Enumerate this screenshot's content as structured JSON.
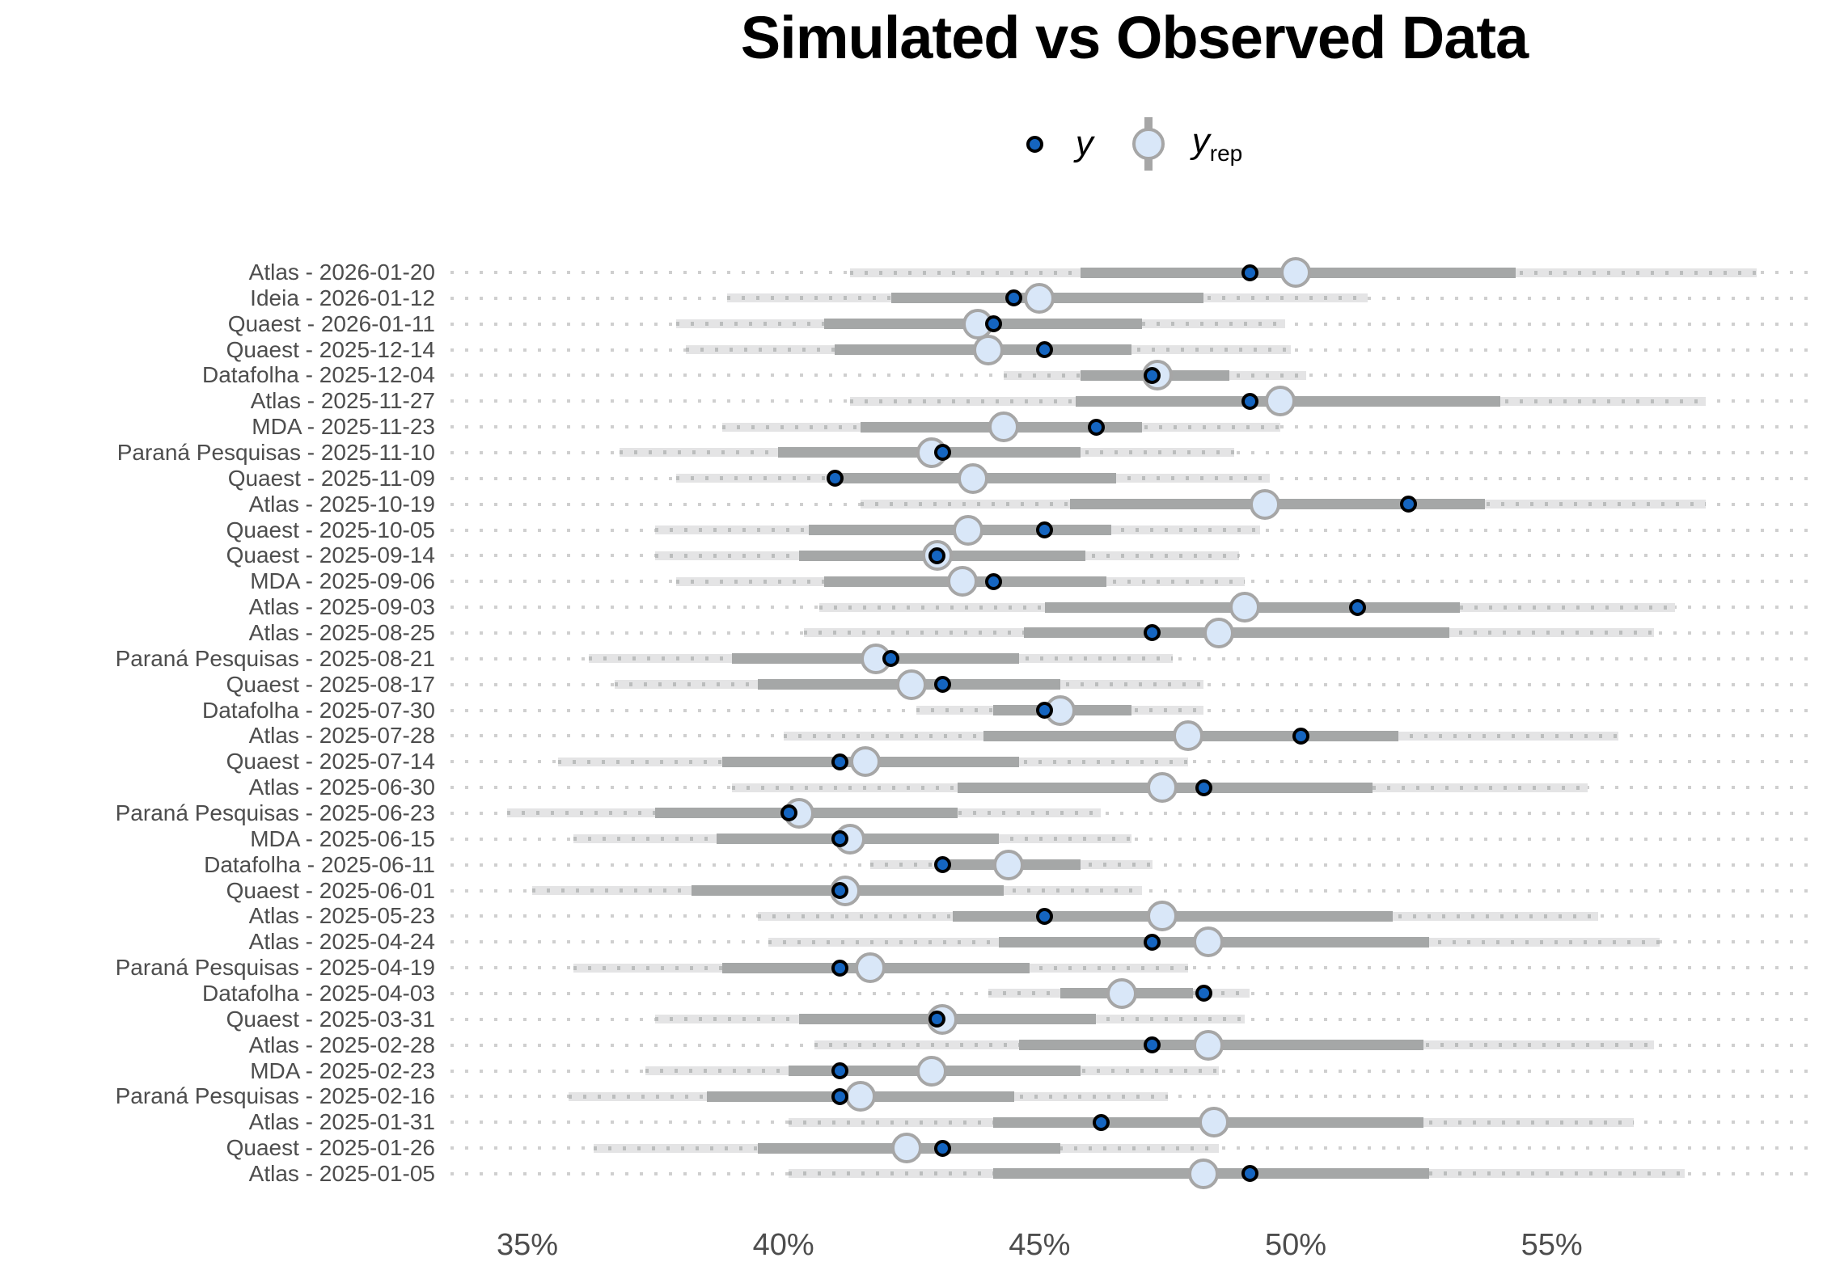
{
  "chart_data": {
    "type": "scatter",
    "variant": "posterior-predictive-check-intervals",
    "title": "Simulated vs Observed Data",
    "legend": {
      "position": "top-center",
      "y_label": "y",
      "yrep_label_main": "y",
      "yrep_label_sub": "rep"
    },
    "xlabel": "",
    "ylabel": "",
    "xlim": [
      33.5,
      60.2
    ],
    "x_ticks": [
      {
        "value": 35,
        "label": "35%"
      },
      {
        "value": 40,
        "label": "40%"
      },
      {
        "value": 45,
        "label": "45%"
      },
      {
        "value": 50,
        "label": "50%"
      },
      {
        "value": 55,
        "label": "55%"
      }
    ],
    "grid": "dotted-horizontal-per-row",
    "colors": {
      "y_fill": "#1565c0",
      "y_stroke": "#000000",
      "yrep_fill": "#d9e7f8",
      "yrep_stroke": "#a6a6a6",
      "inner_interval": "#a5a7a7",
      "outer_interval": "#e4e4e5",
      "outer_interval_dots": "#bbbdbd",
      "grid_dots": "#cfcfcf",
      "axis_text": "#4d4d4d",
      "title_text": "#000000"
    },
    "rows": [
      {
        "label": "Atlas - 2026-01-20",
        "outer": [
          41.3,
          59.0
        ],
        "inner": [
          45.8,
          54.3
        ],
        "y_rep": 50.0,
        "y": 49.1
      },
      {
        "label": "Ideia - 2026-01-12",
        "outer": [
          38.9,
          51.4
        ],
        "inner": [
          42.1,
          48.2
        ],
        "y_rep": 45.0,
        "y": 44.5
      },
      {
        "label": "Quaest - 2026-01-11",
        "outer": [
          37.9,
          49.8
        ],
        "inner": [
          40.8,
          47.0
        ],
        "y_rep": 43.8,
        "y": 44.1
      },
      {
        "label": "Quaest - 2025-12-14",
        "outer": [
          38.1,
          49.9
        ],
        "inner": [
          41.0,
          46.8
        ],
        "y_rep": 44.0,
        "y": 45.1
      },
      {
        "label": "Datafolha - 2025-12-04",
        "outer": [
          44.3,
          50.2
        ],
        "inner": [
          45.8,
          48.7
        ],
        "y_rep": 47.3,
        "y": 47.2
      },
      {
        "label": "Atlas - 2025-11-27",
        "outer": [
          41.3,
          58.0
        ],
        "inner": [
          45.7,
          54.0
        ],
        "y_rep": 49.7,
        "y": 49.1
      },
      {
        "label": "MDA - 2025-11-23",
        "outer": [
          38.8,
          49.7
        ],
        "inner": [
          41.5,
          47.0
        ],
        "y_rep": 44.3,
        "y": 46.1
      },
      {
        "label": "Paraná Pesquisas - 2025-11-10",
        "outer": [
          36.8,
          48.8
        ],
        "inner": [
          39.9,
          45.8
        ],
        "y_rep": 42.9,
        "y": 43.1
      },
      {
        "label": "Quaest - 2025-11-09",
        "outer": [
          37.9,
          49.5
        ],
        "inner": [
          40.9,
          46.5
        ],
        "y_rep": 43.7,
        "y": 41.0
      },
      {
        "label": "Atlas - 2025-10-19",
        "outer": [
          41.5,
          58.0
        ],
        "inner": [
          45.6,
          53.7
        ],
        "y_rep": 49.4,
        "y": 52.2
      },
      {
        "label": "Quaest - 2025-10-05",
        "outer": [
          37.5,
          49.3
        ],
        "inner": [
          40.5,
          46.4
        ],
        "y_rep": 43.6,
        "y": 45.1
      },
      {
        "label": "Quaest - 2025-09-14",
        "outer": [
          37.5,
          48.9
        ],
        "inner": [
          40.3,
          45.9
        ],
        "y_rep": 43.0,
        "y": 43.0
      },
      {
        "label": "MDA - 2025-09-06",
        "outer": [
          37.9,
          49.0
        ],
        "inner": [
          40.8,
          46.3
        ],
        "y_rep": 43.5,
        "y": 44.1
      },
      {
        "label": "Atlas - 2025-09-03",
        "outer": [
          40.7,
          57.4
        ],
        "inner": [
          45.1,
          53.2
        ],
        "y_rep": 49.0,
        "y": 51.2
      },
      {
        "label": "Atlas - 2025-08-25",
        "outer": [
          40.4,
          57.0
        ],
        "inner": [
          44.7,
          53.0
        ],
        "y_rep": 48.5,
        "y": 47.2
      },
      {
        "label": "Paraná Pesquisas - 2025-08-21",
        "outer": [
          36.2,
          47.6
        ],
        "inner": [
          39.0,
          44.6
        ],
        "y_rep": 41.8,
        "y": 42.1
      },
      {
        "label": "Quaest - 2025-08-17",
        "outer": [
          36.7,
          48.2
        ],
        "inner": [
          39.5,
          45.4
        ],
        "y_rep": 42.5,
        "y": 43.1
      },
      {
        "label": "Datafolha - 2025-07-30",
        "outer": [
          42.6,
          48.2
        ],
        "inner": [
          44.1,
          46.8
        ],
        "y_rep": 45.4,
        "y": 45.1
      },
      {
        "label": "Atlas - 2025-07-28",
        "outer": [
          40.0,
          56.3
        ],
        "inner": [
          43.9,
          52.0
        ],
        "y_rep": 47.9,
        "y": 50.1
      },
      {
        "label": "Quaest - 2025-07-14",
        "outer": [
          35.6,
          47.9
        ],
        "inner": [
          38.8,
          44.6
        ],
        "y_rep": 41.6,
        "y": 41.1
      },
      {
        "label": "Atlas - 2025-06-30",
        "outer": [
          39.0,
          55.7
        ],
        "inner": [
          43.4,
          51.5
        ],
        "y_rep": 47.4,
        "y": 48.2
      },
      {
        "label": "Paraná Pesquisas - 2025-06-23",
        "outer": [
          34.6,
          46.2
        ],
        "inner": [
          37.5,
          43.4
        ],
        "y_rep": 40.3,
        "y": 40.1
      },
      {
        "label": "MDA - 2025-06-15",
        "outer": [
          35.9,
          46.8
        ],
        "inner": [
          38.7,
          44.2
        ],
        "y_rep": 41.3,
        "y": 41.1
      },
      {
        "label": "Datafolha - 2025-06-11",
        "outer": [
          41.7,
          47.2
        ],
        "inner": [
          43.1,
          45.8
        ],
        "y_rep": 44.4,
        "y": 43.1
      },
      {
        "label": "Quaest - 2025-06-01",
        "outer": [
          35.1,
          47.0
        ],
        "inner": [
          38.2,
          44.3
        ],
        "y_rep": 41.2,
        "y": 41.1
      },
      {
        "label": "Atlas - 2025-05-23",
        "outer": [
          39.5,
          55.9
        ],
        "inner": [
          43.3,
          51.9
        ],
        "y_rep": 47.4,
        "y": 45.1
      },
      {
        "label": "Atlas - 2025-04-24",
        "outer": [
          39.7,
          57.1
        ],
        "inner": [
          44.2,
          52.6
        ],
        "y_rep": 48.3,
        "y": 47.2
      },
      {
        "label": "Paraná Pesquisas - 2025-04-19",
        "outer": [
          35.9,
          47.9
        ],
        "inner": [
          38.8,
          44.8
        ],
        "y_rep": 41.7,
        "y": 41.1
      },
      {
        "label": "Datafolha - 2025-04-03",
        "outer": [
          44.0,
          49.1
        ],
        "inner": [
          45.4,
          48.0
        ],
        "y_rep": 46.6,
        "y": 48.2
      },
      {
        "label": "Quaest - 2025-03-31",
        "outer": [
          37.5,
          49.0
        ],
        "inner": [
          40.3,
          46.1
        ],
        "y_rep": 43.1,
        "y": 43.0
      },
      {
        "label": "Atlas - 2025-02-28",
        "outer": [
          40.6,
          57.0
        ],
        "inner": [
          44.6,
          52.5
        ],
        "y_rep": 48.3,
        "y": 47.2
      },
      {
        "label": "MDA - 2025-02-23",
        "outer": [
          37.3,
          48.5
        ],
        "inner": [
          40.1,
          45.8
        ],
        "y_rep": 42.9,
        "y": 41.1
      },
      {
        "label": "Paraná Pesquisas - 2025-02-16",
        "outer": [
          35.8,
          47.5
        ],
        "inner": [
          38.5,
          44.5
        ],
        "y_rep": 41.5,
        "y": 41.1
      },
      {
        "label": "Atlas - 2025-01-31",
        "outer": [
          40.1,
          56.6
        ],
        "inner": [
          44.1,
          52.5
        ],
        "y_rep": 48.4,
        "y": 46.2
      },
      {
        "label": "Quaest - 2025-01-26",
        "outer": [
          36.3,
          48.5
        ],
        "inner": [
          39.5,
          45.4
        ],
        "y_rep": 42.4,
        "y": 43.1
      },
      {
        "label": "Atlas - 2025-01-05",
        "outer": [
          40.1,
          57.6
        ],
        "inner": [
          44.1,
          52.6
        ],
        "y_rep": 48.2,
        "y": 49.1
      }
    ]
  }
}
